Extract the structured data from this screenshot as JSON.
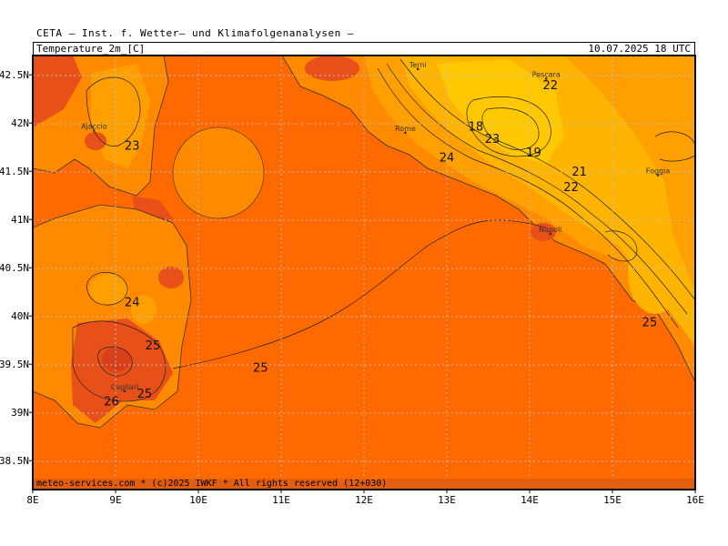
{
  "header": {
    "institute": "CETA — Inst. f. Wetter— und Klimafolgenanalysen —"
  },
  "titlebar": {
    "parameter": "Temperature_2m_[C]",
    "valid_time": "10.07.2025  18 UTC"
  },
  "footer": {
    "credit": "meteo-services.com * (c)2025 IWKF * All rights reserved (12+030)"
  },
  "axes": {
    "x_ticks": [
      "8E",
      "9E",
      "10E",
      "11E",
      "12E",
      "13E",
      "14E",
      "15E",
      "16E"
    ],
    "y_ticks": [
      "42.5N",
      "42N",
      "41.5N",
      "41N",
      "40.5N",
      "40N",
      "39.5N",
      "39N",
      "38.5N"
    ]
  },
  "cities": [
    {
      "name": "Terni",
      "lon": 12.65,
      "lat": 42.56
    },
    {
      "name": "Pescara",
      "lon": 14.2,
      "lat": 42.46
    },
    {
      "name": "Ajaccio",
      "lon": 8.74,
      "lat": 41.92
    },
    {
      "name": "Rome",
      "lon": 12.5,
      "lat": 41.9
    },
    {
      "name": "Foggia",
      "lon": 15.55,
      "lat": 41.46
    },
    {
      "name": "Napoli",
      "lon": 14.25,
      "lat": 40.85
    },
    {
      "name": "Cagliari",
      "lon": 9.11,
      "lat": 39.22
    }
  ],
  "contour_labels": [
    {
      "text": "22",
      "lon": 14.25,
      "lat": 42.4
    },
    {
      "text": "18",
      "lon": 13.35,
      "lat": 41.97
    },
    {
      "text": "23",
      "lon": 13.55,
      "lat": 41.84
    },
    {
      "text": "24",
      "lon": 13.0,
      "lat": 41.65
    },
    {
      "text": "19",
      "lon": 14.05,
      "lat": 41.7
    },
    {
      "text": "21",
      "lon": 14.6,
      "lat": 41.5
    },
    {
      "text": "22",
      "lon": 14.5,
      "lat": 41.34
    },
    {
      "text": "23",
      "lon": 9.2,
      "lat": 41.77
    },
    {
      "text": "24",
      "lon": 9.2,
      "lat": 40.15
    },
    {
      "text": "25",
      "lon": 9.45,
      "lat": 39.7
    },
    {
      "text": "25",
      "lon": 10.75,
      "lat": 39.47
    },
    {
      "text": "25",
      "lon": 9.35,
      "lat": 39.2
    },
    {
      "text": "26",
      "lon": 8.95,
      "lat": 39.12
    },
    {
      "text": "25",
      "lon": 15.45,
      "lat": 39.94
    }
  ],
  "colors": {
    "sea": "#ff6a00",
    "warm_land": "#ff8a00",
    "mild": "#ffa000",
    "cool": "#ffb400",
    "cooler": "#ffc800",
    "hot": "#e8501a",
    "grid": "#bbbbbb"
  }
}
